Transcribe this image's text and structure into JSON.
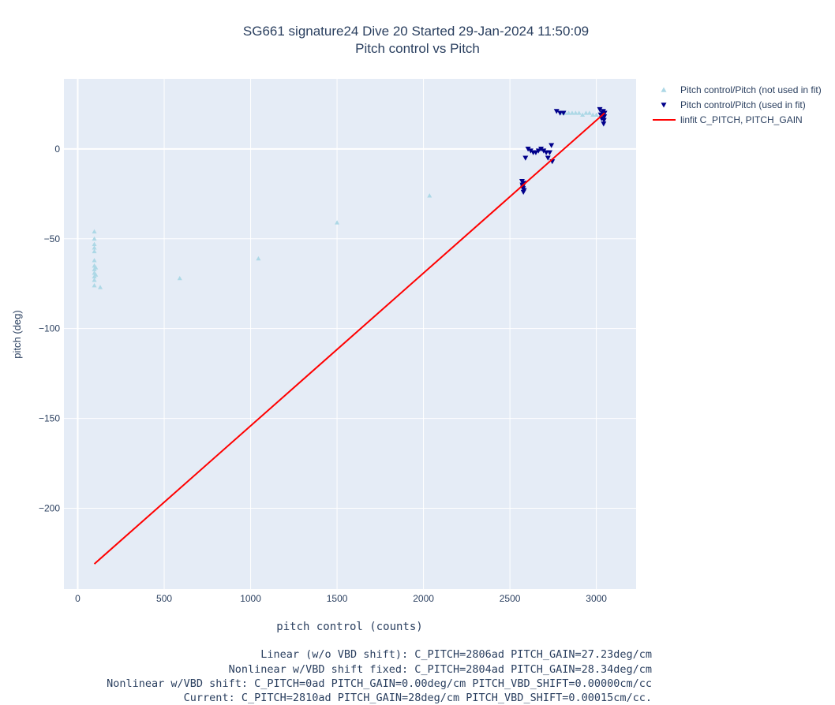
{
  "chart_data": {
    "type": "scatter",
    "title": "SG661 signature24 Dive 20 Started 29-Jan-2024 11:50:09",
    "subtitle": "Pitch control vs Pitch",
    "xlabel": "pitch control (counts)",
    "ylabel": "pitch (deg)",
    "xlim": [
      -80,
      3230
    ],
    "ylim": [
      -245,
      39
    ],
    "x_ticks": [
      0,
      500,
      1000,
      1500,
      2000,
      2500,
      3000
    ],
    "x_tick_labels": [
      "0",
      "500",
      "1000",
      "1500",
      "2000",
      "2500",
      "3000"
    ],
    "y_ticks": [
      0,
      -50,
      -100,
      -150,
      -200
    ],
    "y_tick_labels": [
      "0",
      "−50",
      "−100",
      "−150",
      "−200"
    ],
    "grid": true,
    "legend_position": "top-right",
    "colors": {
      "plot_bg": "#e5ecf6",
      "grid": "#ffffff",
      "not_used": "#add8e6",
      "used": "#00008b",
      "fit": "#ff0000",
      "text": "#2a3f5f"
    },
    "series": [
      {
        "name": "Pitch control/Pitch (not used in fit)",
        "marker": "triangle-up",
        "color": "#add8e6",
        "points": [
          [
            96,
            -46
          ],
          [
            96,
            -50
          ],
          [
            96,
            -53
          ],
          [
            96,
            -55
          ],
          [
            96,
            -57
          ],
          [
            96,
            -62
          ],
          [
            96,
            -65
          ],
          [
            96,
            -67
          ],
          [
            96,
            -69
          ],
          [
            96,
            -71
          ],
          [
            96,
            -73
          ],
          [
            96,
            -76
          ],
          [
            104,
            -66
          ],
          [
            104,
            -70
          ],
          [
            130,
            -77
          ],
          [
            590,
            -72
          ],
          [
            1045,
            -61
          ],
          [
            1500,
            -41
          ],
          [
            2035,
            -26
          ],
          [
            2800,
            20
          ],
          [
            2820,
            20
          ],
          [
            2840,
            20
          ],
          [
            2860,
            20
          ],
          [
            2880,
            20
          ],
          [
            2900,
            20
          ],
          [
            2920,
            19
          ],
          [
            2940,
            20
          ],
          [
            2960,
            20
          ],
          [
            2980,
            19
          ],
          [
            3000,
            19
          ]
        ]
      },
      {
        "name": "Pitch control/Pitch (used in fit)",
        "marker": "triangle-down",
        "color": "#00008b",
        "points": [
          [
            2570,
            -18
          ],
          [
            2572,
            -20
          ],
          [
            2574,
            -21
          ],
          [
            2576,
            -22
          ],
          [
            2578,
            -24
          ],
          [
            2580,
            -19
          ],
          [
            2582,
            -23
          ],
          [
            2590,
            -5
          ],
          [
            2605,
            0
          ],
          [
            2620,
            -1
          ],
          [
            2635,
            -2
          ],
          [
            2650,
            -2
          ],
          [
            2665,
            -1
          ],
          [
            2680,
            0
          ],
          [
            2695,
            -1
          ],
          [
            2710,
            -2
          ],
          [
            2720,
            -5
          ],
          [
            2730,
            -2
          ],
          [
            2740,
            2
          ],
          [
            2745,
            -7
          ],
          [
            2770,
            21
          ],
          [
            2790,
            20
          ],
          [
            2810,
            20
          ],
          [
            3020,
            22
          ],
          [
            3025,
            19
          ],
          [
            3030,
            17
          ],
          [
            3035,
            20
          ],
          [
            3040,
            21
          ],
          [
            3042,
            14
          ],
          [
            3044,
            16
          ],
          [
            3046,
            18
          ],
          [
            3048,
            20
          ]
        ]
      },
      {
        "name": "linfit C_PITCH, PITCH_GAIN",
        "type": "line",
        "color": "#ff0000",
        "points": [
          [
            96,
            -231
          ],
          [
            3048,
            20
          ]
        ]
      }
    ]
  },
  "summary": [
    "Linear (w/o VBD shift): C_PITCH=2806ad PITCH_GAIN=27.23deg/cm",
    "Nonlinear w/VBD shift fixed: C_PITCH=2804ad PITCH_GAIN=28.34deg/cm",
    "Nonlinear w/VBD shift: C_PITCH=0ad PITCH_GAIN=0.00deg/cm PITCH_VBD_SHIFT=0.00000cm/cc",
    "Current: C_PITCH=2810ad PITCH_GAIN=28deg/cm PITCH_VBD_SHIFT=0.00015cm/cc."
  ]
}
